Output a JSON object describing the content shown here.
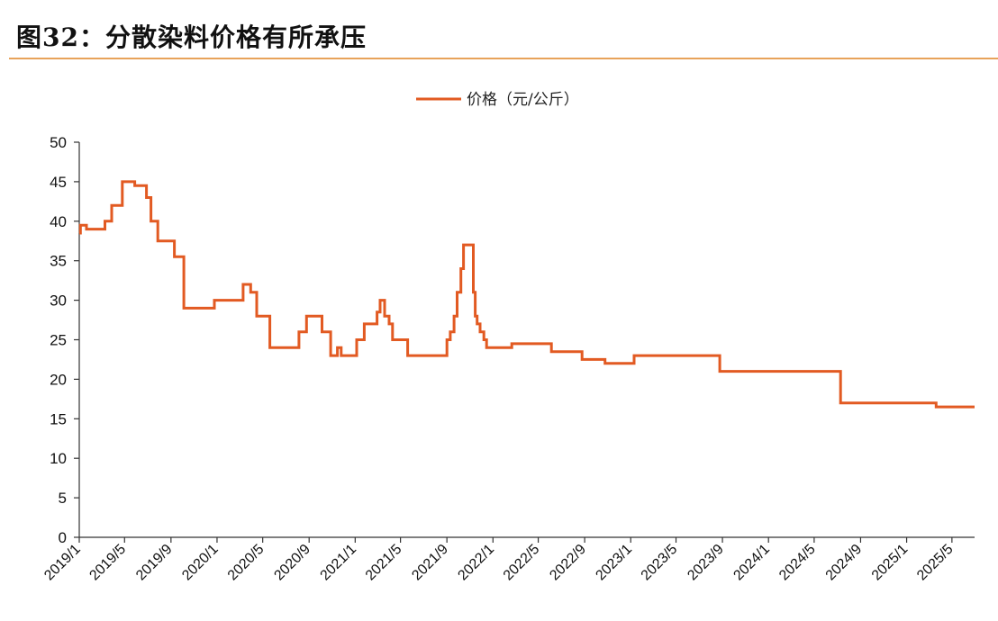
{
  "title": "图32：分散染料价格有所承压",
  "colors": {
    "series": "#e25a22",
    "axis": "#333333",
    "title_rule": "#e8a35a"
  },
  "chart_data": {
    "type": "line",
    "legend": "top-center",
    "grid": false,
    "ylim": [
      0,
      50
    ],
    "yticks": [
      "0",
      "5",
      "10",
      "15",
      "20",
      "25",
      "30",
      "35",
      "40",
      "45",
      "50"
    ],
    "xticks": [
      "2019/1",
      "2019/5",
      "2019/9",
      "2020/1",
      "2020/5",
      "2020/9",
      "2021/1",
      "2021/5",
      "2021/9",
      "2022/1",
      "2022/5",
      "2022/9",
      "2023/1",
      "2023/5",
      "2023/9",
      "2024/1",
      "2024/5",
      "2024/9",
      "2025/1",
      "2025/5"
    ],
    "xrange": [
      "2019-01-01",
      "2025-06-30"
    ],
    "series": [
      {
        "name": "价格（元/公斤）",
        "step": true,
        "points": [
          [
            "2019-01-01",
            38.5
          ],
          [
            "2019-01-04",
            39.5
          ],
          [
            "2019-01-20",
            39.0
          ],
          [
            "2019-03-10",
            40.0
          ],
          [
            "2019-03-28",
            42.0
          ],
          [
            "2019-04-25",
            45.0
          ],
          [
            "2019-05-28",
            44.5
          ],
          [
            "2019-06-28",
            43.0
          ],
          [
            "2019-07-10",
            40.0
          ],
          [
            "2019-07-28",
            37.5
          ],
          [
            "2019-09-10",
            35.5
          ],
          [
            "2019-10-05",
            29.0
          ],
          [
            "2019-12-25",
            30.0
          ],
          [
            "2020-03-10",
            32.0
          ],
          [
            "2020-03-30",
            31.0
          ],
          [
            "2020-04-15",
            28.0
          ],
          [
            "2020-05-20",
            24.0
          ],
          [
            "2020-08-05",
            26.0
          ],
          [
            "2020-08-25",
            28.0
          ],
          [
            "2020-10-05",
            26.0
          ],
          [
            "2020-10-28",
            23.0
          ],
          [
            "2020-11-15",
            24.0
          ],
          [
            "2020-11-25",
            23.0
          ],
          [
            "2021-01-05",
            25.0
          ],
          [
            "2021-01-25",
            27.0
          ],
          [
            "2021-02-28",
            28.5
          ],
          [
            "2021-03-08",
            30.0
          ],
          [
            "2021-03-20",
            28.0
          ],
          [
            "2021-04-01",
            27.0
          ],
          [
            "2021-04-10",
            25.0
          ],
          [
            "2021-05-20",
            23.0
          ],
          [
            "2021-09-01",
            25.0
          ],
          [
            "2021-09-10",
            26.0
          ],
          [
            "2021-09-20",
            28.0
          ],
          [
            "2021-09-28",
            31.0
          ],
          [
            "2021-10-08",
            34.0
          ],
          [
            "2021-10-15",
            37.0
          ],
          [
            "2021-11-10",
            31.0
          ],
          [
            "2021-11-15",
            28.0
          ],
          [
            "2021-11-20",
            27.0
          ],
          [
            "2021-11-28",
            26.0
          ],
          [
            "2021-12-08",
            25.0
          ],
          [
            "2021-12-15",
            24.0
          ],
          [
            "2022-02-20",
            24.5
          ],
          [
            "2022-06-05",
            23.5
          ],
          [
            "2022-08-25",
            22.5
          ],
          [
            "2022-10-25",
            22.0
          ],
          [
            "2023-01-10",
            23.0
          ],
          [
            "2023-08-25",
            21.0
          ],
          [
            "2024-07-10",
            17.0
          ],
          [
            "2025-03-20",
            16.5
          ],
          [
            "2025-06-30",
            16.5
          ]
        ]
      }
    ]
  }
}
